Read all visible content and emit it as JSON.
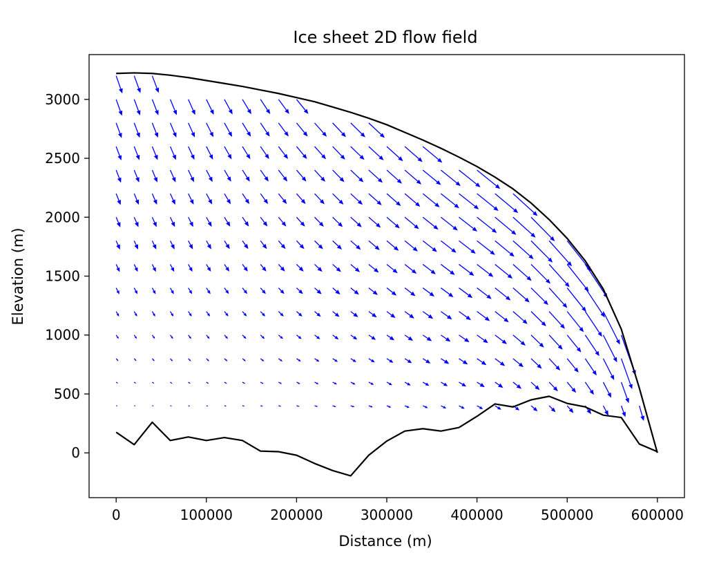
{
  "chart_data": {
    "type": "quiver",
    "title": "Ice sheet 2D flow field",
    "xlabel": "Distance (m)",
    "ylabel": "Elevation (m)",
    "xlim": [
      -30000,
      630000
    ],
    "ylim": [
      -380,
      3380
    ],
    "xticks": [
      0,
      100000,
      200000,
      300000,
      400000,
      500000,
      600000
    ],
    "yticks": [
      0,
      500,
      1000,
      1500,
      2000,
      2500,
      3000
    ],
    "grid": false,
    "legend": "none",
    "colors": {
      "arrows": "#0000ff",
      "lines": "#000000"
    },
    "surface": {
      "x": [
        0,
        20000,
        40000,
        60000,
        80000,
        100000,
        120000,
        140000,
        160000,
        180000,
        200000,
        220000,
        240000,
        260000,
        280000,
        300000,
        320000,
        340000,
        360000,
        380000,
        400000,
        420000,
        440000,
        460000,
        480000,
        500000,
        520000,
        540000,
        560000,
        580000,
        600000
      ],
      "y": [
        3220,
        3225,
        3220,
        3205,
        3185,
        3160,
        3135,
        3110,
        3080,
        3050,
        3015,
        2980,
        2935,
        2890,
        2840,
        2785,
        2720,
        2655,
        2585,
        2510,
        2430,
        2340,
        2240,
        2120,
        1980,
        1820,
        1630,
        1390,
        1050,
        550,
        0
      ]
    },
    "bed": {
      "x": [
        0,
        20000,
        40000,
        60000,
        80000,
        100000,
        120000,
        140000,
        160000,
        180000,
        200000,
        220000,
        240000,
        260000,
        280000,
        300000,
        320000,
        340000,
        360000,
        380000,
        400000,
        420000,
        440000,
        460000,
        480000,
        500000,
        520000,
        540000,
        560000,
        580000,
        600000
      ],
      "y": [
        175,
        70,
        260,
        105,
        135,
        105,
        130,
        105,
        15,
        10,
        -20,
        -90,
        -150,
        -195,
        -20,
        100,
        185,
        205,
        185,
        215,
        310,
        415,
        390,
        450,
        480,
        420,
        390,
        320,
        300,
        75,
        10
      ]
    }
  }
}
